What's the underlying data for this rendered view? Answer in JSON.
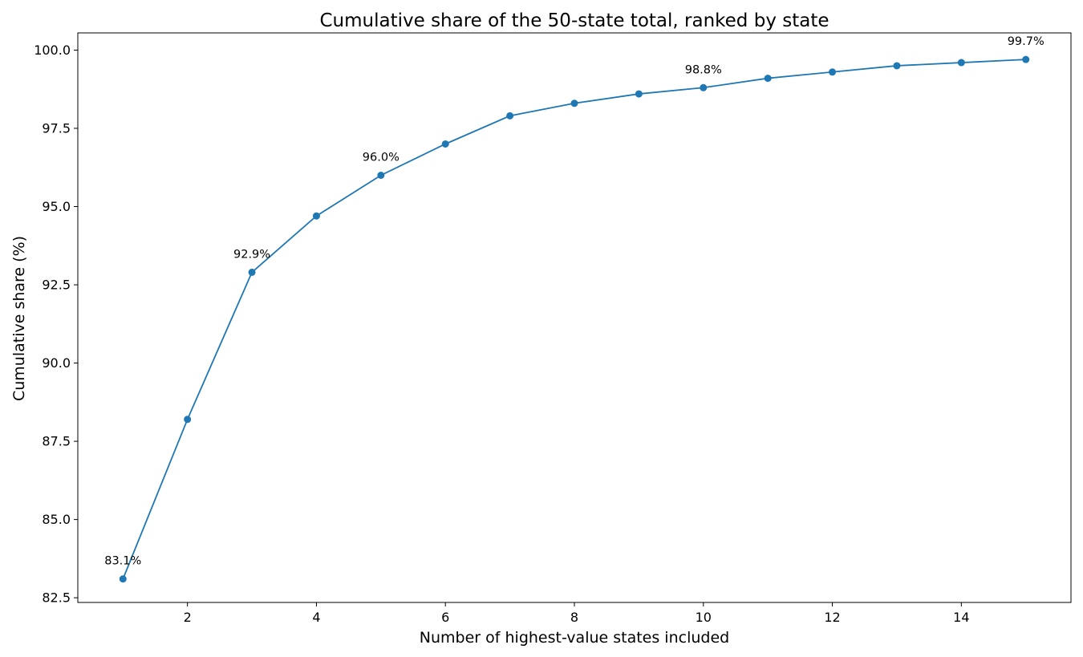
{
  "chart_data": {
    "type": "line",
    "title": "Cumulative share of the 50-state total, ranked by state",
    "xlabel": "Number of highest-value states included",
    "ylabel": "Cumulative share (%)",
    "xlim": [
      0.3,
      15.7
    ],
    "ylim": [
      82.35,
      100.55
    ],
    "xticks": [
      2,
      4,
      6,
      8,
      10,
      12,
      14
    ],
    "xtick_labels": [
      "2",
      "4",
      "6",
      "8",
      "10",
      "12",
      "14"
    ],
    "yticks": [
      82.5,
      85.0,
      87.5,
      90.0,
      92.5,
      95.0,
      97.5,
      100.0
    ],
    "ytick_labels": [
      "82.5",
      "85.0",
      "87.5",
      "90.0",
      "92.5",
      "95.0",
      "97.5",
      "100.0"
    ],
    "grid": false,
    "color": "#1f77b4",
    "series": [
      {
        "x": [
          1,
          2,
          3,
          4,
          5,
          6,
          7,
          8,
          9,
          10,
          11,
          12,
          13,
          14,
          15
        ],
        "values": [
          83.1,
          88.2,
          92.9,
          94.7,
          96.0,
          97.0,
          97.9,
          98.3,
          98.6,
          98.8,
          99.1,
          99.3,
          99.5,
          99.6,
          99.7
        ]
      }
    ],
    "annotations": [
      {
        "x": 1,
        "y": 83.1,
        "text": "83.1%"
      },
      {
        "x": 3,
        "y": 92.9,
        "text": "92.9%"
      },
      {
        "x": 5,
        "y": 96.0,
        "text": "96.0%"
      },
      {
        "x": 10,
        "y": 98.8,
        "text": "98.8%"
      },
      {
        "x": 15,
        "y": 99.7,
        "text": "99.7%"
      }
    ]
  }
}
